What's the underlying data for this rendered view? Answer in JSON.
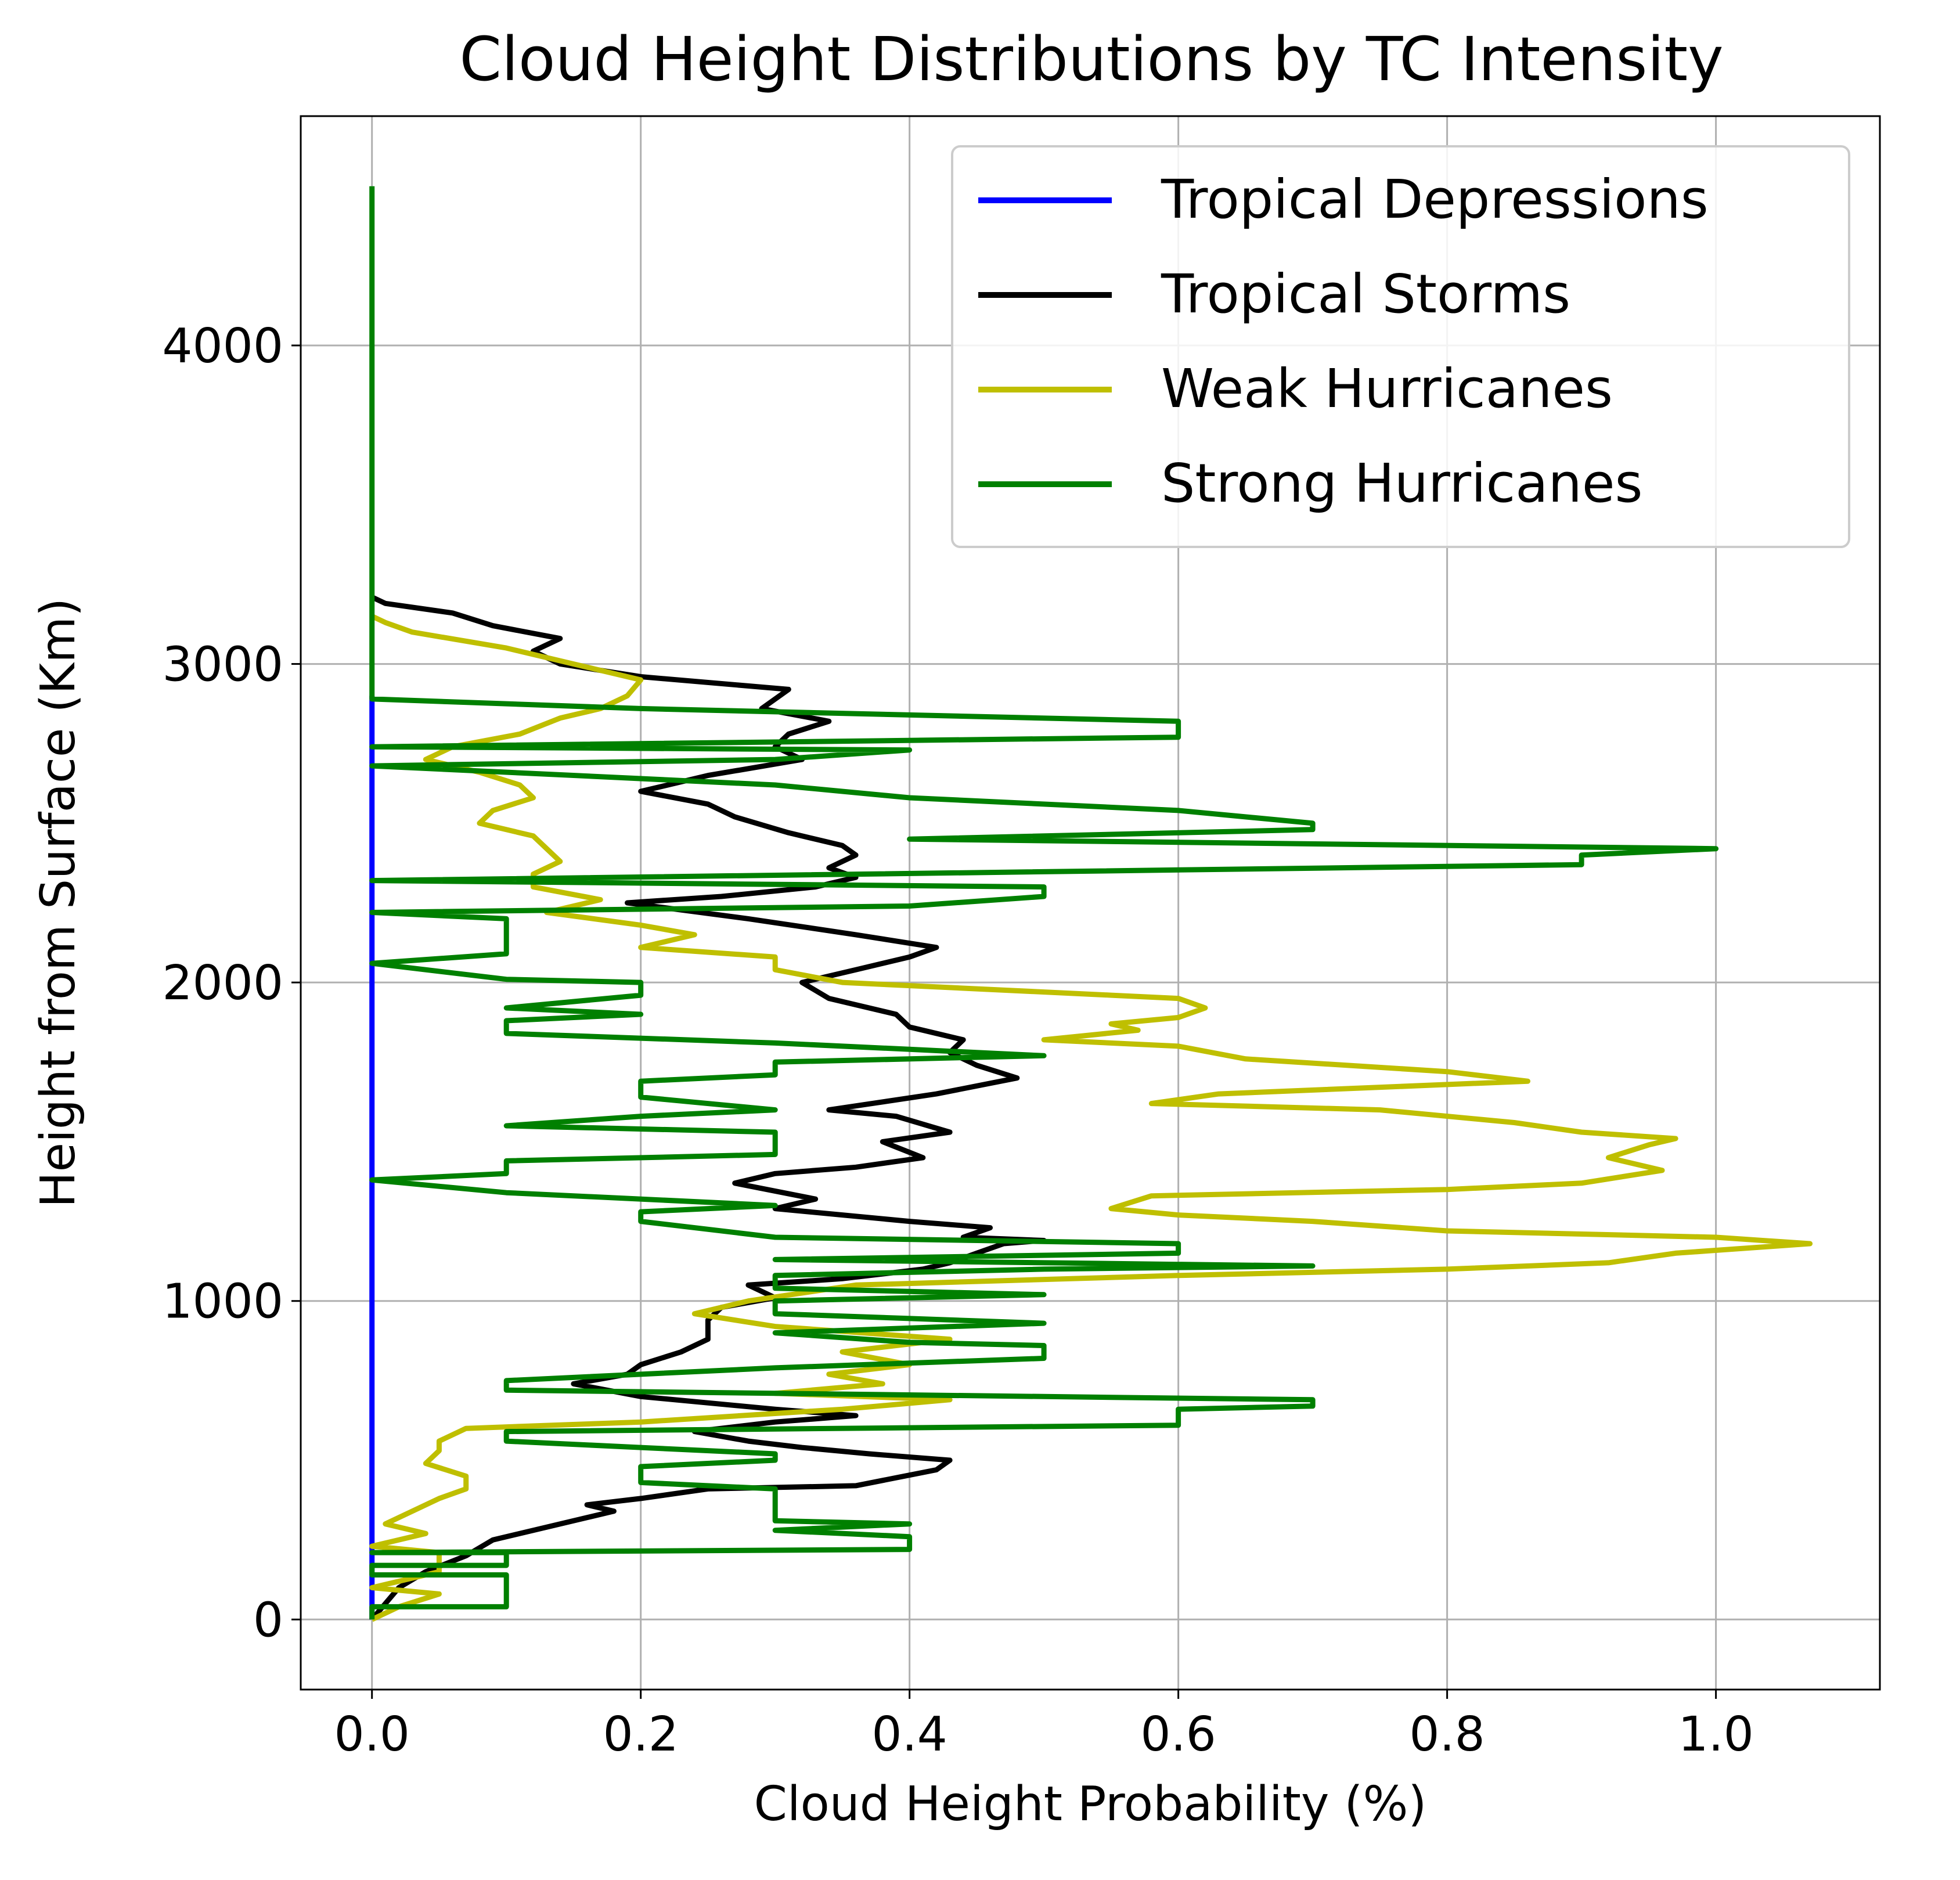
{
  "chart_data": {
    "type": "line",
    "orientation": "vertical-profile",
    "title": "Cloud Height Distributions by TC Intensity",
    "xlabel": "Cloud Height Probability (%)",
    "ylabel": "Height from Surface (Km)",
    "xlim": [
      -0.053,
      1.122
    ],
    "ylim": [
      -220,
      4720
    ],
    "xticks": [
      0.0,
      0.2,
      0.4,
      0.6,
      0.8,
      1.0
    ],
    "xtick_labels": [
      "0.0",
      "0.2",
      "0.4",
      "0.6",
      "0.8",
      "1.0"
    ],
    "yticks": [
      0,
      1000,
      2000,
      3000,
      4000
    ],
    "ytick_labels": [
      "0",
      "1000",
      "2000",
      "3000",
      "4000"
    ],
    "grid": true,
    "legend_position": "top-right",
    "series": [
      {
        "name": "Tropical Depressions",
        "color": "#0000ff",
        "points": [
          [
            0.0,
            0
          ],
          [
            0.0,
            100
          ],
          [
            0.0,
            500
          ],
          [
            0.0,
            1000
          ],
          [
            0.0,
            1500
          ],
          [
            0.0,
            2000
          ],
          [
            0.0,
            2500
          ],
          [
            0.0,
            2900
          ]
        ]
      },
      {
        "name": "Tropical Storms",
        "color": "#000000",
        "points": [
          [
            0.0,
            0
          ],
          [
            0.01,
            50
          ],
          [
            0.02,
            100
          ],
          [
            0.04,
            150
          ],
          [
            0.07,
            200
          ],
          [
            0.09,
            250
          ],
          [
            0.12,
            280
          ],
          [
            0.16,
            320
          ],
          [
            0.18,
            340
          ],
          [
            0.16,
            360
          ],
          [
            0.2,
            380
          ],
          [
            0.25,
            410
          ],
          [
            0.36,
            420
          ],
          [
            0.42,
            470
          ],
          [
            0.43,
            500
          ],
          [
            0.37,
            520
          ],
          [
            0.32,
            540
          ],
          [
            0.28,
            560
          ],
          [
            0.24,
            590
          ],
          [
            0.3,
            620
          ],
          [
            0.36,
            640
          ],
          [
            0.3,
            660
          ],
          [
            0.2,
            700
          ],
          [
            0.15,
            740
          ],
          [
            0.19,
            770
          ],
          [
            0.2,
            800
          ],
          [
            0.23,
            840
          ],
          [
            0.25,
            880
          ],
          [
            0.25,
            940
          ],
          [
            0.26,
            980
          ],
          [
            0.3,
            1010
          ],
          [
            0.28,
            1050
          ],
          [
            0.35,
            1070
          ],
          [
            0.41,
            1100
          ],
          [
            0.43,
            1120
          ],
          [
            0.45,
            1150
          ],
          [
            0.47,
            1180
          ],
          [
            0.5,
            1190
          ],
          [
            0.44,
            1200
          ],
          [
            0.46,
            1230
          ],
          [
            0.4,
            1250
          ],
          [
            0.35,
            1270
          ],
          [
            0.3,
            1290
          ],
          [
            0.33,
            1320
          ],
          [
            0.27,
            1370
          ],
          [
            0.3,
            1400
          ],
          [
            0.36,
            1420
          ],
          [
            0.41,
            1450
          ],
          [
            0.38,
            1500
          ],
          [
            0.43,
            1530
          ],
          [
            0.39,
            1580
          ],
          [
            0.34,
            1600
          ],
          [
            0.42,
            1650
          ],
          [
            0.48,
            1700
          ],
          [
            0.45,
            1740
          ],
          [
            0.43,
            1780
          ],
          [
            0.44,
            1820
          ],
          [
            0.4,
            1860
          ],
          [
            0.39,
            1900
          ],
          [
            0.34,
            1950
          ],
          [
            0.32,
            2000
          ],
          [
            0.36,
            2040
          ],
          [
            0.4,
            2080
          ],
          [
            0.42,
            2110
          ],
          [
            0.36,
            2150
          ],
          [
            0.28,
            2200
          ],
          [
            0.19,
            2250
          ],
          [
            0.26,
            2270
          ],
          [
            0.33,
            2300
          ],
          [
            0.36,
            2330
          ],
          [
            0.34,
            2360
          ],
          [
            0.36,
            2400
          ],
          [
            0.35,
            2430
          ],
          [
            0.31,
            2470
          ],
          [
            0.27,
            2520
          ],
          [
            0.25,
            2560
          ],
          [
            0.2,
            2600
          ],
          [
            0.25,
            2650
          ],
          [
            0.32,
            2700
          ],
          [
            0.3,
            2740
          ],
          [
            0.31,
            2780
          ],
          [
            0.34,
            2820
          ],
          [
            0.29,
            2860
          ],
          [
            0.31,
            2920
          ],
          [
            0.2,
            2960
          ],
          [
            0.14,
            3000
          ],
          [
            0.12,
            3040
          ],
          [
            0.14,
            3080
          ],
          [
            0.09,
            3120
          ],
          [
            0.06,
            3160
          ],
          [
            0.01,
            3190
          ],
          [
            0.0,
            3210
          ]
        ]
      },
      {
        "name": "Weak Hurricanes",
        "color": "#bfbf00",
        "points": [
          [
            0.0,
            0
          ],
          [
            0.02,
            40
          ],
          [
            0.05,
            80
          ],
          [
            0.0,
            100
          ],
          [
            0.05,
            150
          ],
          [
            0.05,
            210
          ],
          [
            0.0,
            230
          ],
          [
            0.04,
            270
          ],
          [
            0.01,
            300
          ],
          [
            0.03,
            340
          ],
          [
            0.05,
            380
          ],
          [
            0.07,
            410
          ],
          [
            0.07,
            450
          ],
          [
            0.04,
            490
          ],
          [
            0.05,
            530
          ],
          [
            0.05,
            560
          ],
          [
            0.07,
            600
          ],
          [
            0.2,
            620
          ],
          [
            0.35,
            660
          ],
          [
            0.43,
            690
          ],
          [
            0.3,
            710
          ],
          [
            0.38,
            740
          ],
          [
            0.34,
            770
          ],
          [
            0.4,
            800
          ],
          [
            0.35,
            840
          ],
          [
            0.43,
            880
          ],
          [
            0.3,
            920
          ],
          [
            0.24,
            960
          ],
          [
            0.28,
            1000
          ],
          [
            0.36,
            1050
          ],
          [
            0.6,
            1080
          ],
          [
            0.8,
            1100
          ],
          [
            0.92,
            1120
          ],
          [
            0.97,
            1150
          ],
          [
            1.07,
            1180
          ],
          [
            1.0,
            1200
          ],
          [
            0.8,
            1220
          ],
          [
            0.7,
            1250
          ],
          [
            0.6,
            1270
          ],
          [
            0.55,
            1290
          ],
          [
            0.58,
            1330
          ],
          [
            0.8,
            1350
          ],
          [
            0.9,
            1370
          ],
          [
            0.96,
            1410
          ],
          [
            0.92,
            1450
          ],
          [
            0.95,
            1490
          ],
          [
            0.97,
            1510
          ],
          [
            0.9,
            1530
          ],
          [
            0.85,
            1560
          ],
          [
            0.75,
            1600
          ],
          [
            0.58,
            1620
          ],
          [
            0.63,
            1650
          ],
          [
            0.86,
            1690
          ],
          [
            0.8,
            1720
          ],
          [
            0.65,
            1760
          ],
          [
            0.6,
            1800
          ],
          [
            0.5,
            1820
          ],
          [
            0.57,
            1850
          ],
          [
            0.55,
            1870
          ],
          [
            0.6,
            1890
          ],
          [
            0.62,
            1920
          ],
          [
            0.6,
            1950
          ],
          [
            0.55,
            1960
          ],
          [
            0.45,
            1980
          ],
          [
            0.35,
            2000
          ],
          [
            0.3,
            2040
          ],
          [
            0.3,
            2080
          ],
          [
            0.2,
            2110
          ],
          [
            0.24,
            2150
          ],
          [
            0.2,
            2180
          ],
          [
            0.13,
            2220
          ],
          [
            0.17,
            2260
          ],
          [
            0.12,
            2300
          ],
          [
            0.12,
            2340
          ],
          [
            0.14,
            2380
          ],
          [
            0.13,
            2420
          ],
          [
            0.12,
            2460
          ],
          [
            0.08,
            2500
          ],
          [
            0.09,
            2540
          ],
          [
            0.12,
            2580
          ],
          [
            0.11,
            2620
          ],
          [
            0.08,
            2660
          ],
          [
            0.04,
            2700
          ],
          [
            0.06,
            2740
          ],
          [
            0.11,
            2780
          ],
          [
            0.14,
            2830
          ],
          [
            0.17,
            2860
          ],
          [
            0.19,
            2900
          ],
          [
            0.2,
            2950
          ],
          [
            0.15,
            3000
          ],
          [
            0.1,
            3050
          ],
          [
            0.03,
            3100
          ],
          [
            0.01,
            3130
          ],
          [
            0.0,
            3150
          ]
        ]
      },
      {
        "name": "Strong Hurricanes",
        "color": "#008000",
        "points": [
          [
            0.0,
            0
          ],
          [
            0.0,
            40
          ],
          [
            0.1,
            40
          ],
          [
            0.1,
            140
          ],
          [
            0.0,
            140
          ],
          [
            0.0,
            170
          ],
          [
            0.1,
            170
          ],
          [
            0.1,
            210
          ],
          [
            0.0,
            210
          ],
          [
            0.4,
            220
          ],
          [
            0.4,
            260
          ],
          [
            0.3,
            280
          ],
          [
            0.4,
            300
          ],
          [
            0.3,
            310
          ],
          [
            0.3,
            410
          ],
          [
            0.2,
            430
          ],
          [
            0.2,
            480
          ],
          [
            0.3,
            500
          ],
          [
            0.3,
            520
          ],
          [
            0.2,
            540
          ],
          [
            0.1,
            560
          ],
          [
            0.1,
            590
          ],
          [
            0.6,
            610
          ],
          [
            0.6,
            660
          ],
          [
            0.7,
            670
          ],
          [
            0.7,
            690
          ],
          [
            0.1,
            720
          ],
          [
            0.1,
            750
          ],
          [
            0.3,
            790
          ],
          [
            0.5,
            820
          ],
          [
            0.5,
            860
          ],
          [
            0.4,
            870
          ],
          [
            0.3,
            900
          ],
          [
            0.5,
            930
          ],
          [
            0.3,
            960
          ],
          [
            0.3,
            1000
          ],
          [
            0.5,
            1020
          ],
          [
            0.3,
            1040
          ],
          [
            0.3,
            1080
          ],
          [
            0.5,
            1100
          ],
          [
            0.7,
            1110
          ],
          [
            0.3,
            1130
          ],
          [
            0.6,
            1150
          ],
          [
            0.6,
            1180
          ],
          [
            0.3,
            1200
          ],
          [
            0.2,
            1250
          ],
          [
            0.2,
            1280
          ],
          [
            0.3,
            1300
          ],
          [
            0.1,
            1340
          ],
          [
            0.0,
            1380
          ],
          [
            0.1,
            1400
          ],
          [
            0.1,
            1440
          ],
          [
            0.3,
            1460
          ],
          [
            0.3,
            1530
          ],
          [
            0.1,
            1550
          ],
          [
            0.2,
            1580
          ],
          [
            0.3,
            1600
          ],
          [
            0.2,
            1640
          ],
          [
            0.2,
            1690
          ],
          [
            0.3,
            1710
          ],
          [
            0.3,
            1750
          ],
          [
            0.5,
            1770
          ],
          [
            0.4,
            1790
          ],
          [
            0.3,
            1810
          ],
          [
            0.1,
            1840
          ],
          [
            0.1,
            1880
          ],
          [
            0.2,
            1900
          ],
          [
            0.1,
            1920
          ],
          [
            0.2,
            1960
          ],
          [
            0.2,
            2000
          ],
          [
            0.1,
            2010
          ],
          [
            0.0,
            2060
          ],
          [
            0.1,
            2090
          ],
          [
            0.1,
            2200
          ],
          [
            0.0,
            2220
          ],
          [
            0.4,
            2240
          ],
          [
            0.5,
            2270
          ],
          [
            0.5,
            2300
          ],
          [
            0.0,
            2320
          ],
          [
            0.9,
            2370
          ],
          [
            0.9,
            2400
          ],
          [
            1.0,
            2420
          ],
          [
            0.4,
            2450
          ],
          [
            0.7,
            2480
          ],
          [
            0.7,
            2500
          ],
          [
            0.6,
            2540
          ],
          [
            0.4,
            2580
          ],
          [
            0.3,
            2620
          ],
          [
            0.0,
            2680
          ],
          [
            0.3,
            2700
          ],
          [
            0.4,
            2730
          ],
          [
            0.0,
            2740
          ],
          [
            0.6,
            2770
          ],
          [
            0.6,
            2820
          ],
          [
            0.2,
            2860
          ],
          [
            0.0,
            2890
          ],
          [
            0.0,
            4500
          ]
        ]
      }
    ]
  }
}
